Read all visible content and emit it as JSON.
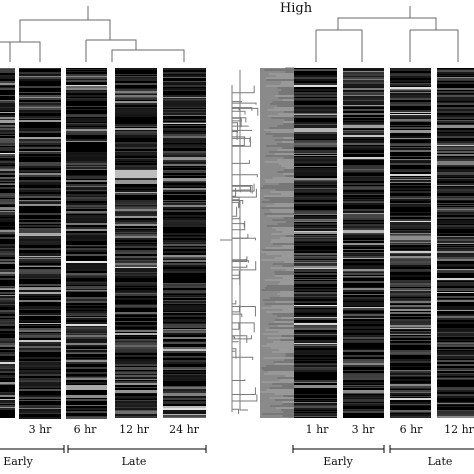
{
  "title": "High",
  "left_panel": {
    "columns": [
      "",
      "3 hr",
      "6 hr",
      "12 hr",
      "24 hr"
    ],
    "phases": [
      "Early",
      "Late"
    ]
  },
  "right_panel": {
    "columns": [
      "1 hr",
      "3 hr",
      "6 hr",
      "12 hr"
    ],
    "phases": [
      "Early",
      "Late"
    ]
  },
  "colors": {
    "background": "#ffffff",
    "heatmap_base": "#000000",
    "dendrogram": "#7a7a7a",
    "axis": "#000000"
  }
}
